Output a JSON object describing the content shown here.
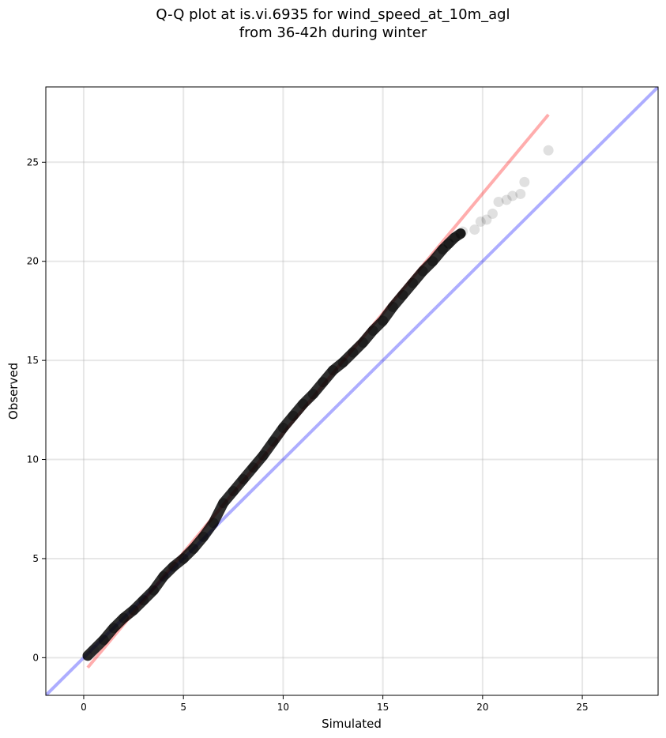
{
  "chart_data": {
    "type": "scatter",
    "title_lines": [
      "Q-Q plot at is.vi.6935 for wind_speed_at_10m_agl",
      "from 36-42h during winter"
    ],
    "xlabel": "Simulated",
    "ylabel": "Observed",
    "xlim": [
      -1.9,
      28.8
    ],
    "ylim": [
      -1.9,
      28.8
    ],
    "xticks": [
      "0",
      "5",
      "10",
      "15",
      "20",
      "25"
    ],
    "yticks": [
      "0",
      "5",
      "10",
      "15",
      "20",
      "25"
    ],
    "grid": true,
    "colors": {
      "points": "#000000",
      "identity_line": "#0000ff",
      "fit_line": "#ff0000",
      "background": "#ffffff"
    },
    "reference_lines": [
      {
        "kind": "identity",
        "x": [
          -1.9,
          28.8
        ],
        "y": [
          -1.9,
          28.8
        ]
      },
      {
        "kind": "fit",
        "x": [
          0.2,
          23.3
        ],
        "y": [
          -0.5,
          27.4
        ]
      }
    ],
    "points": {
      "x": [
        0.2,
        0.5,
        1.0,
        1.5,
        2.0,
        2.5,
        3.0,
        3.5,
        4.0,
        4.5,
        5.0,
        5.5,
        6.0,
        6.5,
        7.0,
        7.5,
        8.0,
        8.5,
        9.0,
        9.5,
        10.0,
        10.5,
        11.0,
        11.5,
        12.0,
        12.5,
        13.0,
        13.5,
        14.0,
        14.5,
        15.0,
        15.5,
        16.0,
        16.5,
        17.0,
        17.5,
        18.0,
        18.3,
        18.6,
        18.9,
        19.0,
        19.6,
        19.9,
        20.2,
        20.5,
        20.8,
        21.2,
        21.5,
        21.9,
        22.1,
        23.3
      ],
      "y": [
        0.1,
        0.4,
        0.9,
        1.5,
        2.0,
        2.4,
        2.9,
        3.4,
        4.1,
        4.6,
        5.0,
        5.5,
        6.1,
        6.8,
        7.8,
        8.4,
        9.0,
        9.6,
        10.2,
        10.9,
        11.6,
        12.2,
        12.8,
        13.3,
        13.9,
        14.5,
        14.9,
        15.4,
        15.9,
        16.5,
        17.0,
        17.7,
        18.3,
        18.9,
        19.5,
        20.0,
        20.6,
        20.9,
        21.2,
        21.4,
        21.5,
        21.6,
        22.0,
        22.1,
        22.4,
        23.0,
        23.1,
        23.3,
        23.4,
        24.0,
        25.6
      ]
    }
  }
}
